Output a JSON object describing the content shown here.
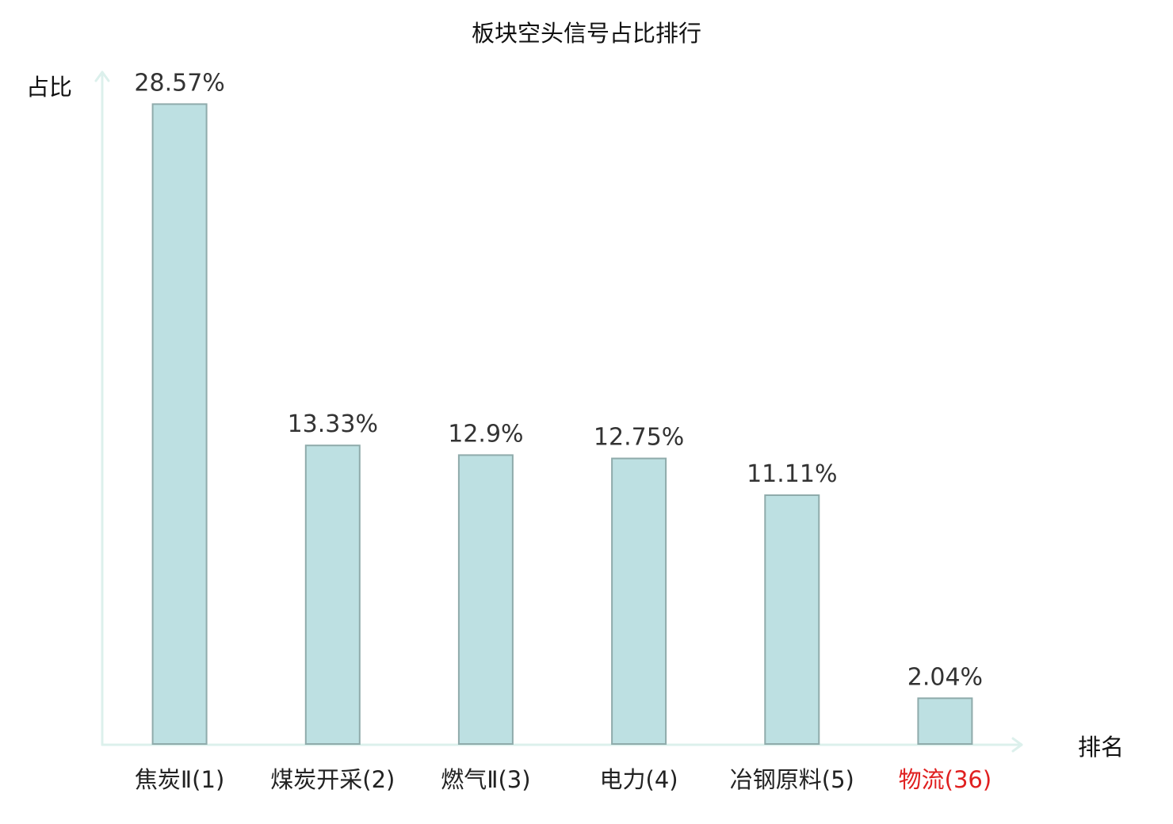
{
  "chart_data": {
    "type": "bar",
    "title": "板块空头信号占比排行",
    "xlabel": "排名",
    "ylabel": "占比",
    "categories": [
      "焦炭Ⅱ(1)",
      "煤炭开采(2)",
      "燃气Ⅱ(3)",
      "电力(4)",
      "冶钢原料(5)",
      "物流(36)"
    ],
    "values": [
      28.57,
      13.33,
      12.9,
      12.75,
      11.11,
      2.04
    ],
    "value_labels": [
      "28.57%",
      "13.33%",
      "12.9%",
      "12.75%",
      "11.11%",
      "2.04%"
    ],
    "ylim": [
      0,
      30
    ],
    "grid": false,
    "legend": "none",
    "colors": {
      "bar_fill": "#bde0e2",
      "bar_stroke": "#8fabab",
      "axis": "#dcf0ec",
      "label_colors": [
        "#222222",
        "#222222",
        "#222222",
        "#222222",
        "#222222",
        "#e02020"
      ]
    }
  }
}
